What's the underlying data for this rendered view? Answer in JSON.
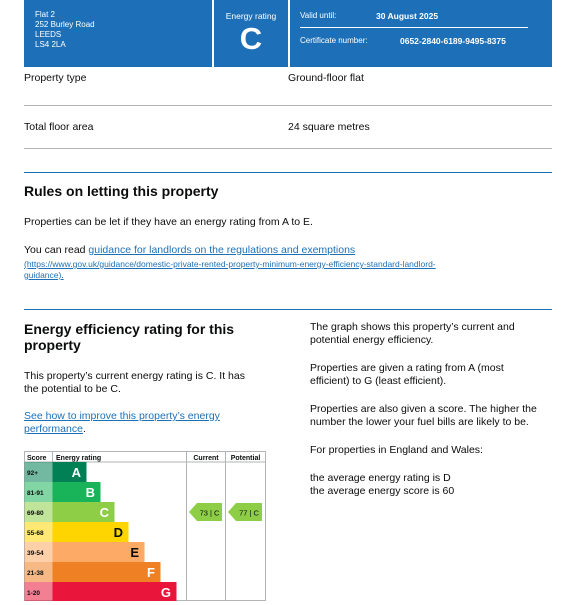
{
  "header": {
    "address": [
      "Flat 2",
      "252 Burley Road",
      "LEEDS",
      "LS4 2LA"
    ],
    "rating_label": "Energy rating",
    "rating_letter": "C",
    "valid_label": "Valid until:",
    "valid_value": "30 August 2025",
    "cert_label": "Certificate number:",
    "cert_value": "0652-2840-6189-9495-8375"
  },
  "property": {
    "type_label": "Property type",
    "type_value": "Ground-floor flat",
    "area_label": "Total floor area",
    "area_value": "24 square metres"
  },
  "letting": {
    "heading": "Rules on letting this property",
    "text": "Properties can be let if they have an energy rating from A to E.",
    "read_prefix": "You can read ",
    "read_link": "guidance for landlords on the regulations and exemptions",
    "url_line1": "(https://www.gov.uk/guidance/domestic-private-rented-property-minimum-energy-efficiency-standard-landlord-",
    "url_line2": "guidance)",
    "url_suffix": "."
  },
  "efficiency": {
    "heading_line1": "Energy efficiency rating for this",
    "heading_line2": "property",
    "current_line1": "This property’s current energy rating is C. It has",
    "current_line2": "the potential to be C.",
    "improve_line1": "See how to improve this property’s energy",
    "improve_line2": "performance",
    "improve_suffix": "."
  },
  "side_text": {
    "p1_line1": "The graph shows this property’s current and",
    "p1_line2": "potential energy efficiency.",
    "p2_line1": "Properties are given a rating from A (most",
    "p2_line2": "efficient) to G (least efficient).",
    "p3_line1": "Properties are also given a score. The higher the",
    "p3_line2": "number the lower your fuel bills are likely to be.",
    "p4": "For properties in England and Wales:",
    "p5_line1": "the average energy rating is D",
    "p5_line2": "the average energy score is 60"
  },
  "chart_data": {
    "type": "bar",
    "headers": {
      "score": "Score",
      "rating": "Energy rating",
      "current": "Current",
      "potential": "Potential"
    },
    "bands": [
      {
        "letter": "A",
        "range": "92+",
        "color": "#008054"
      },
      {
        "letter": "B",
        "range": "81-91",
        "color": "#19b459"
      },
      {
        "letter": "C",
        "range": "69-80",
        "color": "#8dce46"
      },
      {
        "letter": "D",
        "range": "55-68",
        "color": "#ffd500"
      },
      {
        "letter": "E",
        "range": "39-54",
        "color": "#fcaa65"
      },
      {
        "letter": "F",
        "range": "21-38",
        "color": "#ef8023"
      },
      {
        "letter": "G",
        "range": "1-20",
        "color": "#e9153b"
      }
    ],
    "current": {
      "score": 73,
      "letter": "C",
      "label": "73 | C"
    },
    "potential": {
      "score": 77,
      "letter": "C",
      "label": "77 | C"
    }
  }
}
